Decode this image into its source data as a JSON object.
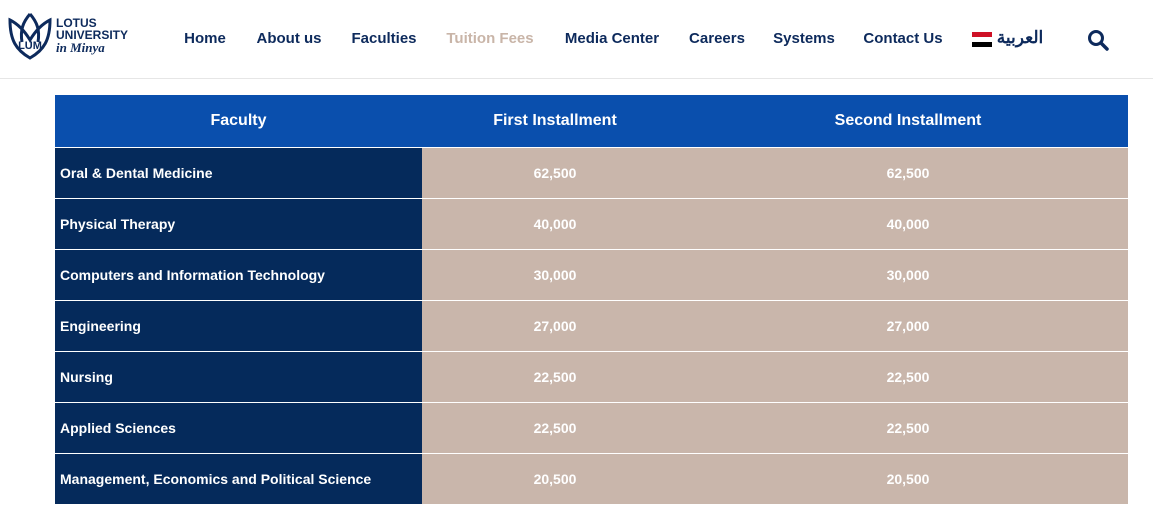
{
  "header": {
    "logo": {
      "mark": "LUM",
      "line1": "LOTUS",
      "line2": "UNIVERSITY",
      "tagline": "in Minya"
    },
    "nav": [
      "Home",
      "About us",
      "Faculties",
      "Tuition Fees",
      "Media Center",
      "Careers",
      "Systems",
      "Contact Us"
    ],
    "active": "Tuition Fees",
    "language": "العربية"
  },
  "table": {
    "headers": [
      "Faculty",
      "First Installment",
      "Second Installment"
    ],
    "rows": [
      [
        "Oral & Dental Medicine",
        "62,500",
        "62,500"
      ],
      [
        "Physical Therapy",
        "40,000",
        "40,000"
      ],
      [
        "Computers and Information Technology",
        "30,000",
        "30,000"
      ],
      [
        "Engineering",
        "27,000",
        "27,000"
      ],
      [
        "Nursing",
        "22,500",
        "22,500"
      ],
      [
        "Applied Sciences",
        "22,500",
        "22,500"
      ],
      [
        "Management, Economics and Political Science",
        "20,500",
        "20,500"
      ]
    ]
  }
}
